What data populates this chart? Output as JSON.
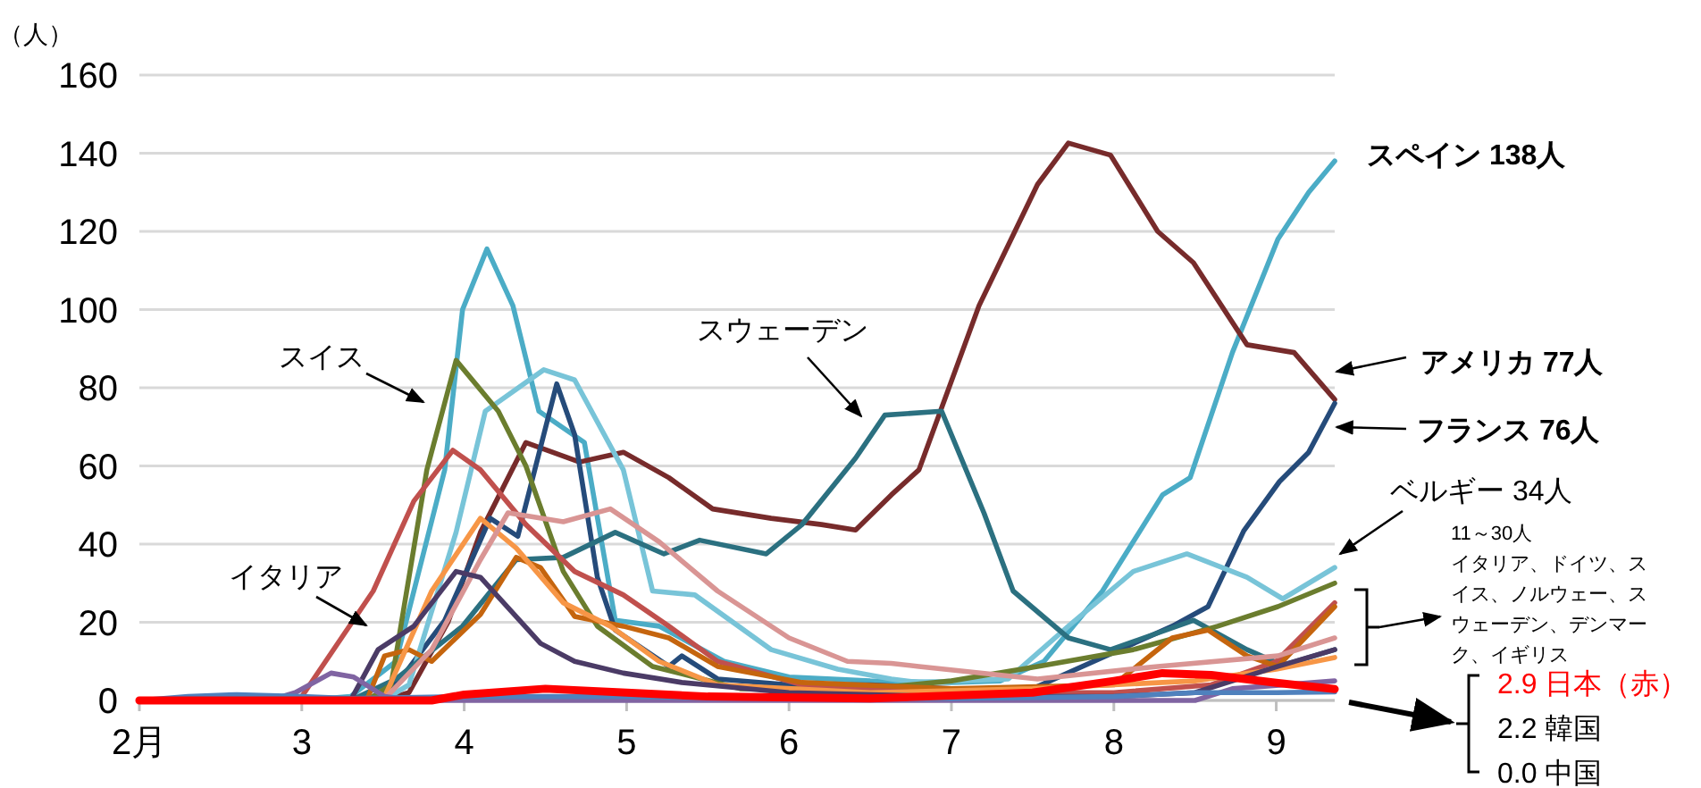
{
  "chart_data": {
    "type": "line",
    "ylabel": "（人）",
    "xlim": [
      2,
      9.36
    ],
    "xticks": [
      {
        "value": 2,
        "label": "2月"
      },
      3,
      4,
      5,
      6,
      7,
      8,
      9
    ],
    "ylim": [
      0,
      160
    ],
    "yticks": [
      0,
      20,
      40,
      60,
      80,
      100,
      120,
      140,
      160
    ],
    "grid": "y",
    "line_style": "solid",
    "series": [
      {
        "color": "#4bacc6",
        "x": [
          2,
          3,
          3.3,
          3.58,
          3.88,
          3.99,
          4.14,
          4.3,
          4.46,
          4.74,
          4.93,
          5.2,
          5.6,
          6.0,
          6.5,
          7.0,
          7.3,
          7.57,
          7.93,
          8.3,
          8.47,
          8.73,
          9.01,
          9.2,
          9.36
        ],
        "values": [
          0,
          0,
          1,
          10,
          59,
          100,
          115.5,
          101,
          74,
          66,
          20.5,
          19,
          10,
          6,
          5,
          4.6,
          5,
          10,
          28,
          52.6,
          57,
          89,
          118,
          130,
          138
        ]
      },
      {
        "color": "#772b2b",
        "x": [
          2,
          3.5,
          3.66,
          3.9,
          4.1,
          4.38,
          4.71,
          4.98,
          5.26,
          5.53,
          5.89,
          6.2,
          6.41,
          6.63,
          6.8,
          7.17,
          7.53,
          7.72,
          7.98,
          8.27,
          8.49,
          8.82,
          9.11,
          9.36
        ],
        "values": [
          0,
          0,
          2,
          20,
          43,
          66,
          61,
          63.5,
          57,
          49,
          46.6,
          45,
          43.6,
          52.6,
          59,
          101,
          132,
          142.6,
          139.5,
          120,
          112,
          91,
          89,
          77
        ]
      },
      {
        "color": "#254b7a",
        "x": [
          2,
          3.4,
          3.6,
          3.88,
          4.16,
          4.33,
          4.57,
          4.68,
          4.82,
          4.93,
          5.26,
          5.34,
          5.56,
          6.0,
          6.5,
          7.0,
          7.5,
          8.36,
          8.58,
          8.8,
          9.02,
          9.2,
          9.36
        ],
        "values": [
          0,
          0,
          5,
          20.5,
          46.6,
          42,
          81,
          68,
          31.5,
          18,
          8.7,
          11.4,
          5.5,
          4,
          4,
          3,
          3,
          19,
          24,
          43.4,
          56,
          63.5,
          76
        ]
      },
      {
        "color": "#78c4d8",
        "x": [
          2,
          3.5,
          3.66,
          3.95,
          4.13,
          4.49,
          4.68,
          4.98,
          5.16,
          5.42,
          5.89,
          6.3,
          6.63,
          6.8,
          7.35,
          7.72,
          8.12,
          8.45,
          8.82,
          9.04,
          9.36
        ],
        "values": [
          0,
          0,
          4,
          43,
          74,
          84.6,
          82,
          59,
          28,
          27,
          13,
          8,
          5.5,
          4.6,
          5.5,
          19,
          33,
          37.5,
          31.5,
          26,
          34
        ]
      },
      {
        "color": "#2b7080",
        "x": [
          2,
          3.3,
          3.58,
          3.99,
          4.32,
          4.61,
          4.93,
          5.23,
          5.45,
          5.86,
          6.08,
          6.41,
          6.59,
          6.94,
          7.2,
          7.38,
          7.72,
          7.98,
          8.49,
          8.82,
          9.04,
          9.36
        ],
        "values": [
          0,
          0,
          5.5,
          19,
          36,
          36.6,
          43,
          37.5,
          41,
          37.5,
          45,
          62,
          73,
          74,
          48,
          28,
          16,
          13,
          20.5,
          13,
          9,
          13
        ]
      },
      {
        "color": "#6b7d2e",
        "x": [
          2,
          3.4,
          3.55,
          3.77,
          3.95,
          4.21,
          4.38,
          4.61,
          4.82,
          5.16,
          5.7,
          6.5,
          7.0,
          7.53,
          8.12,
          8.64,
          9.01,
          9.36
        ],
        "values": [
          0,
          0,
          4,
          59,
          87,
          74,
          60,
          33,
          19,
          8.7,
          3,
          3,
          5,
          8.7,
          13,
          19,
          24,
          30
        ]
      },
      {
        "color": "#c0504d",
        "x": [
          2,
          2.9,
          3.0,
          3.44,
          3.69,
          3.93,
          4.1,
          4.38,
          4.68,
          4.98,
          5.26,
          5.56,
          6.08,
          7.0,
          8.0,
          8.6,
          9.0,
          9.36
        ],
        "values": [
          0,
          0,
          1,
          28,
          51,
          64,
          59,
          45,
          33,
          27,
          19,
          10,
          4,
          2,
          2,
          4,
          10,
          25
        ]
      },
      {
        "color": "#c5650e",
        "x": [
          2,
          3.4,
          3.51,
          3.66,
          3.8,
          4.1,
          4.32,
          4.47,
          4.68,
          4.98,
          5.26,
          5.56,
          6.08,
          7.0,
          8.0,
          8.36,
          8.58,
          8.82,
          9.01,
          9.36
        ],
        "values": [
          0,
          0,
          11.4,
          13,
          10,
          22,
          36.6,
          34,
          21.5,
          19,
          16,
          8.7,
          4.6,
          3,
          4,
          16,
          18,
          11.4,
          8.7,
          24
        ]
      },
      {
        "color": "#f79646",
        "x": [
          2,
          3.5,
          3.8,
          4.1,
          4.32,
          4.61,
          4.9,
          5.2,
          5.56,
          6.5,
          7.5,
          8.5,
          9.0,
          9.36
        ],
        "values": [
          0,
          0,
          28,
          46.6,
          39,
          25,
          19,
          10,
          4,
          2,
          3,
          5,
          8,
          11
        ]
      },
      {
        "color": "#d99594",
        "x": [
          2,
          3.5,
          3.8,
          4.1,
          4.27,
          4.61,
          4.9,
          5.2,
          5.56,
          6.0,
          6.36,
          6.63,
          6.8,
          7.53,
          8.27,
          9.01,
          9.36
        ],
        "values": [
          0,
          0,
          13,
          36,
          48,
          45.7,
          49,
          40.6,
          28,
          16,
          10,
          9.5,
          8.7,
          5.5,
          8.7,
          11.4,
          16
        ]
      },
      {
        "color": "#4b3b66",
        "x": [
          2,
          3.3,
          3.47,
          3.69,
          3.95,
          4.1,
          4.47,
          4.68,
          4.98,
          5.34,
          6.0,
          7.0,
          8.0,
          8.5,
          9.01,
          9.36
        ],
        "values": [
          0,
          0,
          13,
          19,
          33,
          31.5,
          14.6,
          10,
          7,
          4.6,
          2,
          1,
          1,
          2,
          8.7,
          13
        ]
      },
      {
        "color": "#8064a2",
        "x": [
          2,
          2.8,
          2.96,
          3.18,
          3.32,
          3.51,
          3.7,
          8.5,
          8.73,
          9.36
        ],
        "values": [
          0,
          0,
          2,
          7,
          6,
          1,
          0,
          0,
          3,
          5
        ]
      },
      {
        "color": "#4f81bd",
        "x": [
          2,
          2.3,
          2.6,
          3.0,
          3.3,
          4.0,
          5.0,
          6.0,
          7.0,
          8.0,
          8.5,
          9.0,
          9.36
        ],
        "values": [
          0,
          1,
          1.5,
          1,
          0.5,
          1,
          1,
          0.5,
          0.5,
          1,
          2,
          2,
          2.2
        ]
      },
      {
        "color": "#ff0000",
        "x": [
          2,
          3.8,
          4.0,
          4.5,
          5.0,
          5.5,
          6.5,
          7.5,
          8.0,
          8.3,
          8.6,
          9.0,
          9.36
        ],
        "values": [
          0,
          0,
          1.5,
          3,
          2,
          1,
          0.5,
          2,
          5,
          7,
          6.5,
          4.5,
          2.9
        ]
      }
    ],
    "annotations": [
      "スペイン 138人",
      "アメリカ 77人",
      "フランス 76人",
      "ベルギー 34人",
      "11～30人",
      "イタリア、ドイツ、スイス、ノルウェー、スウェーデン、デンマーク、イギリス",
      "スイス",
      "イタリア",
      "スウェーデン",
      "2.9 日本（赤）",
      "2.2 韓国",
      "0.0 中国"
    ]
  }
}
